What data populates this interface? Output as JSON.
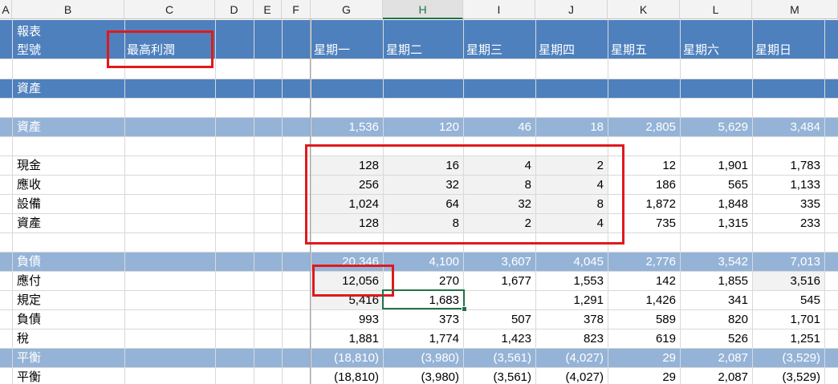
{
  "columns": [
    "A",
    "B",
    "C",
    "D",
    "E",
    "F",
    "G",
    "H",
    "I",
    "J",
    "K",
    "L",
    "M"
  ],
  "header": {
    "label_line1": "報表",
    "label_line2": "型號",
    "selector_value": "最高利潤",
    "days": [
      "星期一",
      "星期二",
      "星期三",
      "星期四",
      "星期五",
      "星期六",
      "星期日"
    ]
  },
  "sections": {
    "assets_title": "資產"
  },
  "rows": [
    {
      "label": "資產",
      "values": [
        "1,536",
        "120",
        "46",
        "18",
        "2,805",
        "5,629",
        "3,484"
      ]
    },
    {
      "label": "現金",
      "values": [
        "128",
        "16",
        "4",
        "2",
        "12",
        "1,901",
        "1,783"
      ]
    },
    {
      "label": "應收",
      "values": [
        "256",
        "32",
        "8",
        "4",
        "186",
        "565",
        "1,133"
      ]
    },
    {
      "label": "設備",
      "values": [
        "1,024",
        "64",
        "32",
        "8",
        "1,872",
        "1,848",
        "335"
      ]
    },
    {
      "label": "資產",
      "values": [
        "128",
        "8",
        "2",
        "4",
        "735",
        "1,315",
        "233"
      ]
    },
    {
      "label": "負債",
      "values": [
        "20,346",
        "4,100",
        "3,607",
        "4,045",
        "2,776",
        "3,542",
        "7,013"
      ]
    },
    {
      "label": "應付",
      "values": [
        "12,056",
        "270",
        "1,677",
        "1,553",
        "142",
        "1,855",
        "3,516"
      ]
    },
    {
      "label": "規定",
      "values": [
        "5,416",
        "1,683",
        "",
        "1,291",
        "1,426",
        "341",
        "545"
      ]
    },
    {
      "label": "負債",
      "values": [
        "993",
        "373",
        "507",
        "378",
        "589",
        "820",
        "1,701"
      ]
    },
    {
      "label": "稅",
      "values": [
        "1,881",
        "1,774",
        "1,423",
        "823",
        "619",
        "526",
        "1,251"
      ]
    },
    {
      "label": "平衡",
      "values": [
        "(18,810)",
        "(3,980)",
        "(3,561)",
        "(4,027)",
        "29",
        "2,087",
        "(3,529)"
      ]
    },
    {
      "label": "平衡",
      "values": [
        "(18,810)",
        "(3,980)",
        "(3,561)",
        "(4,027)",
        "29",
        "2,087",
        "(3,529)"
      ]
    }
  ],
  "colors": {
    "header_band": "#4e80bd",
    "subtotal_band": "#95b3d7",
    "highlight_border": "#e0191c",
    "active_cell": "#217346"
  },
  "active_cell": "H"
}
